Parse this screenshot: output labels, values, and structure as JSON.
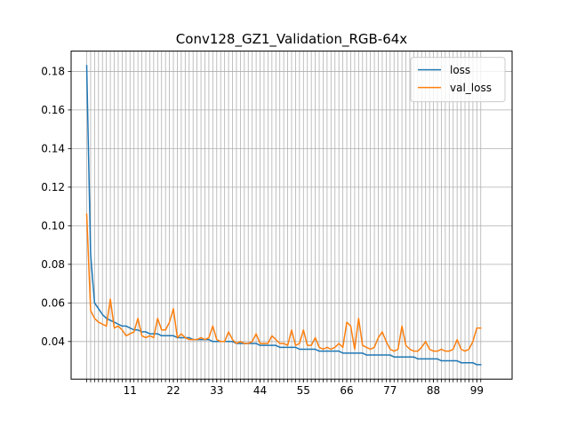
{
  "chart_data": {
    "type": "line",
    "title": "Conv128_GZ1_Validation_RGB-64x",
    "xlabel": "",
    "ylabel": "",
    "xlim": [
      -3.95,
      107.95
    ],
    "ylim": [
      0.0205,
      0.1905
    ],
    "x_ticks": [
      11,
      22,
      33,
      44,
      55,
      66,
      77,
      88,
      99
    ],
    "y_ticks": [
      0.04,
      0.06,
      0.08,
      0.1,
      0.12,
      0.14,
      0.16,
      0.18
    ],
    "y_tick_labels": [
      "0.04",
      "0.06",
      "0.08",
      "0.10",
      "0.12",
      "0.14",
      "0.16",
      "0.18"
    ],
    "grid": true,
    "legend": "top-right",
    "x": [
      0,
      1,
      2,
      3,
      4,
      5,
      6,
      7,
      8,
      9,
      10,
      11,
      12,
      13,
      14,
      15,
      16,
      17,
      18,
      19,
      20,
      21,
      22,
      23,
      24,
      25,
      26,
      27,
      28,
      29,
      30,
      31,
      32,
      33,
      34,
      35,
      36,
      37,
      38,
      39,
      40,
      41,
      42,
      43,
      44,
      45,
      46,
      47,
      48,
      49,
      50,
      51,
      52,
      53,
      54,
      55,
      56,
      57,
      58,
      59,
      60,
      61,
      62,
      63,
      64,
      65,
      66,
      67,
      68,
      69,
      70,
      71,
      72,
      73,
      74,
      75,
      76,
      77,
      78,
      79,
      80,
      81,
      82,
      83,
      84,
      85,
      86,
      87,
      88,
      89,
      90,
      91,
      92,
      93,
      94,
      95,
      96,
      97,
      98,
      99,
      100
    ],
    "series": [
      {
        "name": "loss",
        "color": "#1f77b4",
        "values": [
          0.183,
          0.085,
          0.06,
          0.057,
          0.054,
          0.052,
          0.051,
          0.05,
          0.049,
          0.048,
          0.048,
          0.047,
          0.046,
          0.046,
          0.045,
          0.045,
          0.044,
          0.044,
          0.044,
          0.043,
          0.043,
          0.043,
          0.043,
          0.042,
          0.042,
          0.042,
          0.042,
          0.041,
          0.041,
          0.041,
          0.041,
          0.041,
          0.04,
          0.04,
          0.04,
          0.04,
          0.04,
          0.04,
          0.039,
          0.039,
          0.039,
          0.039,
          0.039,
          0.039,
          0.038,
          0.038,
          0.038,
          0.038,
          0.038,
          0.037,
          0.037,
          0.037,
          0.037,
          0.037,
          0.036,
          0.036,
          0.036,
          0.036,
          0.036,
          0.035,
          0.035,
          0.035,
          0.035,
          0.035,
          0.035,
          0.034,
          0.034,
          0.034,
          0.034,
          0.034,
          0.034,
          0.033,
          0.033,
          0.033,
          0.033,
          0.033,
          0.033,
          0.033,
          0.032,
          0.032,
          0.032,
          0.032,
          0.032,
          0.032,
          0.031,
          0.031,
          0.031,
          0.031,
          0.031,
          0.031,
          0.03,
          0.03,
          0.03,
          0.03,
          0.03,
          0.029,
          0.029,
          0.029,
          0.029,
          0.028,
          0.028
        ]
      },
      {
        "name": "val_loss",
        "color": "#ff7f0e",
        "values": [
          0.106,
          0.056,
          0.052,
          0.05,
          0.049,
          0.048,
          0.062,
          0.047,
          0.048,
          0.046,
          0.043,
          0.044,
          0.045,
          0.052,
          0.043,
          0.042,
          0.043,
          0.042,
          0.052,
          0.046,
          0.046,
          0.05,
          0.057,
          0.042,
          0.044,
          0.042,
          0.041,
          0.041,
          0.041,
          0.042,
          0.041,
          0.042,
          0.048,
          0.041,
          0.04,
          0.04,
          0.045,
          0.041,
          0.039,
          0.04,
          0.039,
          0.039,
          0.04,
          0.044,
          0.039,
          0.039,
          0.039,
          0.043,
          0.041,
          0.039,
          0.039,
          0.038,
          0.046,
          0.038,
          0.039,
          0.046,
          0.038,
          0.038,
          0.042,
          0.037,
          0.036,
          0.037,
          0.036,
          0.037,
          0.039,
          0.037,
          0.05,
          0.048,
          0.036,
          0.052,
          0.038,
          0.037,
          0.036,
          0.037,
          0.042,
          0.045,
          0.04,
          0.036,
          0.035,
          0.036,
          0.048,
          0.038,
          0.036,
          0.035,
          0.035,
          0.037,
          0.04,
          0.036,
          0.035,
          0.035,
          0.036,
          0.035,
          0.035,
          0.036,
          0.041,
          0.036,
          0.035,
          0.036,
          0.04,
          0.047,
          0.047
        ]
      }
    ]
  }
}
